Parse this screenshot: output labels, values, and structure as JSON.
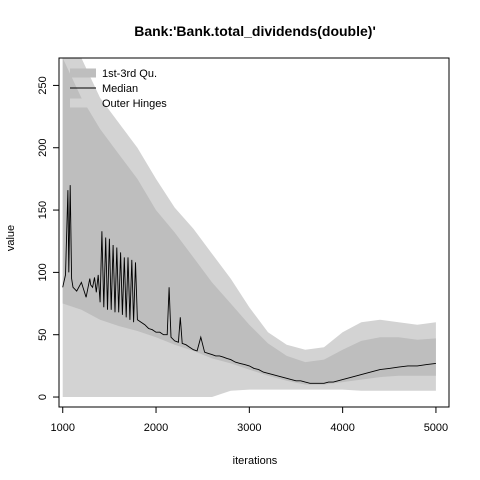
{
  "chart_data": {
    "type": "area",
    "title": "Bank:'Bank.total_dividends(double)'",
    "xlabel": "iterations",
    "ylabel": "value",
    "xlim": [
      960,
      5140
    ],
    "ylim": [
      -8,
      272
    ],
    "x_ticks": [
      1000,
      2000,
      3000,
      4000,
      5000
    ],
    "y_ticks": [
      0,
      50,
      100,
      150,
      200,
      250
    ],
    "grid": false,
    "legend": {
      "position": "top-left",
      "entries": [
        "1st-3rd Qu.",
        "Median",
        "Outer Hinges"
      ]
    },
    "colors": {
      "outer_hinges": "#d3d3d3",
      "quartiles": "#bebebe",
      "median": "#000000"
    },
    "series": [
      {
        "name": "Outer Hinges",
        "kind": "band",
        "x": [
          1000,
          1200,
          1400,
          1600,
          1800,
          2000,
          2200,
          2400,
          2600,
          2800,
          3000,
          3200,
          3400,
          3600,
          3800,
          4000,
          4200,
          4400,
          4600,
          4800,
          5000
        ],
        "lower": [
          0,
          0,
          0,
          0,
          0,
          0,
          0,
          0,
          0,
          5,
          6,
          6,
          6,
          6,
          6,
          6,
          5,
          5,
          5,
          5,
          5
        ],
        "upper": [
          272,
          272,
          240,
          220,
          200,
          175,
          152,
          135,
          115,
          95,
          72,
          52,
          42,
          38,
          40,
          52,
          60,
          62,
          60,
          58,
          60
        ]
      },
      {
        "name": "1st-3rd Qu.",
        "kind": "band",
        "x": [
          1000,
          1200,
          1400,
          1600,
          1800,
          2000,
          2200,
          2400,
          2600,
          2800,
          3000,
          3200,
          3400,
          3600,
          3800,
          4000,
          4200,
          4400,
          4600,
          4800,
          5000
        ],
        "lower": [
          75,
          70,
          62,
          57,
          53,
          48,
          42,
          37,
          31,
          27,
          22,
          17,
          13,
          10,
          10,
          12,
          14,
          16,
          17,
          17,
          17
        ],
        "upper": [
          272,
          240,
          215,
          195,
          175,
          150,
          132,
          112,
          92,
          75,
          58,
          43,
          33,
          28,
          30,
          38,
          45,
          48,
          48,
          46,
          47
        ]
      },
      {
        "name": "Median",
        "kind": "line",
        "x": [
          1000,
          1030,
          1055,
          1065,
          1080,
          1095,
          1110,
          1150,
          1200,
          1250,
          1290,
          1300,
          1320,
          1340,
          1360,
          1380,
          1400,
          1420,
          1440,
          1460,
          1480,
          1500,
          1520,
          1540,
          1560,
          1580,
          1600,
          1620,
          1640,
          1660,
          1680,
          1700,
          1720,
          1740,
          1760,
          1780,
          1800,
          1840,
          1880,
          1920,
          1960,
          2000,
          2040,
          2080,
          2120,
          2140,
          2160,
          2200,
          2240,
          2260,
          2280,
          2320,
          2360,
          2400,
          2440,
          2480,
          2520,
          2560,
          2600,
          2640,
          2680,
          2720,
          2760,
          2800,
          2850,
          2900,
          2950,
          3000,
          3050,
          3100,
          3150,
          3200,
          3250,
          3300,
          3350,
          3400,
          3450,
          3500,
          3550,
          3600,
          3650,
          3700,
          3750,
          3800,
          3850,
          3900,
          3950,
          4000,
          4100,
          4200,
          4300,
          4400,
          4500,
          4600,
          4700,
          4800,
          4900,
          5000
        ],
        "y": [
          88,
          98,
          166,
          100,
          170,
          95,
          88,
          85,
          92,
          80,
          95,
          90,
          88,
          96,
          84,
          98,
          76,
          133,
          72,
          128,
          70,
          127,
          70,
          122,
          68,
          120,
          68,
          116,
          66,
          112,
          64,
          112,
          62,
          110,
          60,
          108,
          62,
          60,
          58,
          55,
          54,
          52,
          52,
          50,
          50,
          88,
          48,
          45,
          44,
          64,
          43,
          42,
          40,
          38,
          37,
          48,
          36,
          35,
          34,
          33,
          33,
          32,
          31,
          30,
          28,
          27,
          26,
          25,
          23,
          22,
          20,
          19,
          18,
          17,
          16,
          15,
          14,
          13,
          13,
          12,
          11,
          11,
          11,
          11,
          12,
          12,
          13,
          14,
          16,
          18,
          20,
          22,
          23,
          24,
          25,
          25,
          26,
          27
        ]
      }
    ]
  }
}
